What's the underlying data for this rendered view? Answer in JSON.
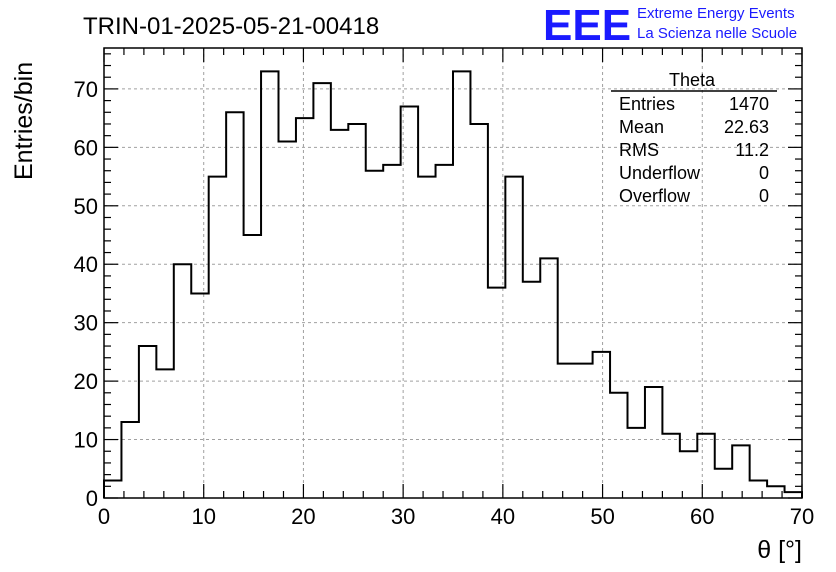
{
  "chart_data": {
    "type": "bar",
    "title": "TRIN-01-2025-05-21-00418",
    "xlabel": "θ [°]",
    "ylabel": "Entries/bin",
    "xlim": [
      0,
      70
    ],
    "ylim": [
      0,
      77
    ],
    "bin_width": 1.75,
    "x_ticks": [
      0,
      10,
      20,
      30,
      40,
      50,
      60,
      70
    ],
    "y_ticks": [
      0,
      10,
      20,
      30,
      40,
      50,
      60,
      70
    ],
    "grid": true,
    "bins": [
      {
        "x": 0,
        "value": 3
      },
      {
        "x": 1.75,
        "value": 13
      },
      {
        "x": 3.5,
        "value": 26
      },
      {
        "x": 5.25,
        "value": 22
      },
      {
        "x": 7,
        "value": 40
      },
      {
        "x": 8.75,
        "value": 35
      },
      {
        "x": 10.5,
        "value": 55
      },
      {
        "x": 12.25,
        "value": 66
      },
      {
        "x": 14,
        "value": 45
      },
      {
        "x": 15.75,
        "value": 73
      },
      {
        "x": 17.5,
        "value": 61
      },
      {
        "x": 19.25,
        "value": 65
      },
      {
        "x": 21,
        "value": 71
      },
      {
        "x": 22.75,
        "value": 63
      },
      {
        "x": 24.5,
        "value": 64
      },
      {
        "x": 26.25,
        "value": 56
      },
      {
        "x": 28,
        "value": 57
      },
      {
        "x": 29.75,
        "value": 67
      },
      {
        "x": 31.5,
        "value": 55
      },
      {
        "x": 33.25,
        "value": 57
      },
      {
        "x": 35,
        "value": 73
      },
      {
        "x": 36.75,
        "value": 64
      },
      {
        "x": 38.5,
        "value": 36
      },
      {
        "x": 40.25,
        "value": 55
      },
      {
        "x": 42,
        "value": 37
      },
      {
        "x": 43.75,
        "value": 41
      },
      {
        "x": 45.5,
        "value": 23
      },
      {
        "x": 47.25,
        "value": 23
      },
      {
        "x": 49,
        "value": 25
      },
      {
        "x": 50.75,
        "value": 18
      },
      {
        "x": 52.5,
        "value": 12
      },
      {
        "x": 54.25,
        "value": 19
      },
      {
        "x": 56,
        "value": 11
      },
      {
        "x": 57.75,
        "value": 8
      },
      {
        "x": 59.5,
        "value": 11
      },
      {
        "x": 61.25,
        "value": 5
      },
      {
        "x": 63,
        "value": 9
      },
      {
        "x": 64.75,
        "value": 3
      },
      {
        "x": 66.5,
        "value": 2
      },
      {
        "x": 68.25,
        "value": 1
      }
    ],
    "stats": {
      "name": "Theta",
      "rows": [
        {
          "label": "Entries",
          "value": "1470"
        },
        {
          "label": "Mean",
          "value": "22.63"
        },
        {
          "label": "RMS",
          "value": "11.2"
        },
        {
          "label": "Underflow",
          "value": "0"
        },
        {
          "label": "Overflow",
          "value": "0"
        }
      ]
    }
  },
  "logo": {
    "mark": "EEE",
    "line1": "Extreme Energy Events",
    "line2": "La Scienza nelle Scuole",
    "color": "#1a1aff"
  }
}
